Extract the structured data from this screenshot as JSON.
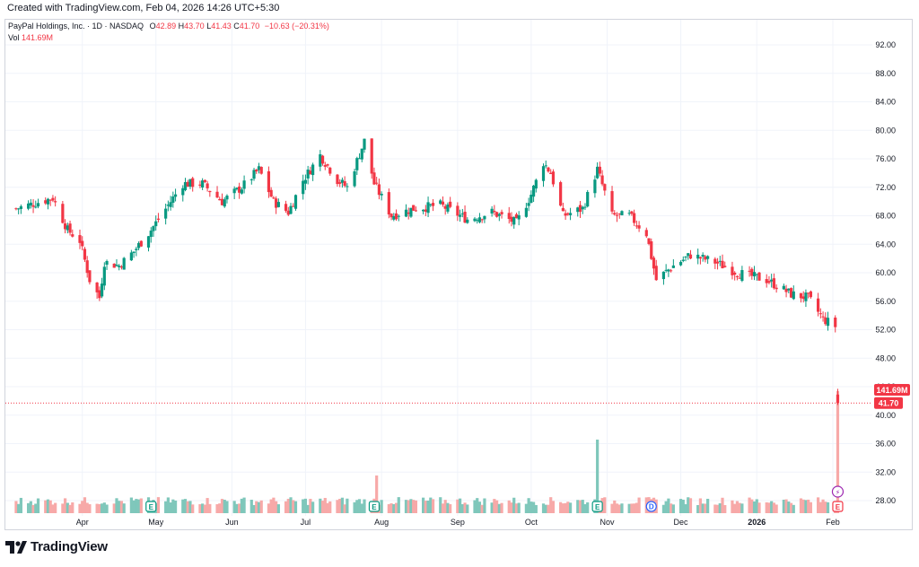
{
  "header": {
    "created_text": "Created with TradingView.com, Feb 04, 2026 14:26 UTC+5:30"
  },
  "legend": {
    "symbol_line": "PayPal Holdings, Inc. · 1D · NASDAQ",
    "o_label": "O",
    "o_value": "42.89",
    "h_label": "H",
    "h_value": "43.70",
    "l_label": "L",
    "l_value": "41.43",
    "c_label": "C",
    "c_value": "41.70",
    "change": "−10.63 (−20.31%)",
    "vol_label": "Vol",
    "vol_value": "141.69M"
  },
  "price_badge": "41.70",
  "volume_badge": "141.69M",
  "brand": {
    "name": "TradingView"
  },
  "colors": {
    "up": "#089981",
    "down": "#f23645",
    "up_vol": "#7fc7bb",
    "down_vol": "#f7a9a8",
    "grid": "#f0f3fa"
  },
  "chart_data": {
    "type": "candlestick",
    "title": "PayPal Holdings, Inc. · 1D · NASDAQ",
    "y_ticks": [
      "92.00",
      "88.00",
      "84.00",
      "80.00",
      "76.00",
      "72.00",
      "68.00",
      "64.00",
      "60.00",
      "56.00",
      "52.00",
      "48.00",
      "44.00",
      "40.00",
      "36.00",
      "32.00",
      "28.00"
    ],
    "x_ticks": [
      "Apr",
      "May",
      "Jun",
      "Jul",
      "Aug",
      "Sep",
      "Oct",
      "Nov",
      "Dec",
      "2026",
      "Feb"
    ],
    "ylim": [
      26.5,
      94.5
    ],
    "grid": true,
    "price_path": [
      [
        "2025-03-05",
        69.0
      ],
      [
        "2025-03-20",
        70.5
      ],
      [
        "2025-03-26",
        66.0
      ],
      [
        "2025-03-31",
        64.5
      ],
      [
        "2025-04-04",
        59.0
      ],
      [
        "2025-04-08",
        56.5
      ],
      [
        "2025-04-10",
        61.5
      ],
      [
        "2025-04-16",
        61.0
      ],
      [
        "2025-04-22",
        63.0
      ],
      [
        "2025-04-29",
        66.0
      ],
      [
        "2025-05-05",
        69.0
      ],
      [
        "2025-05-12",
        72.5
      ],
      [
        "2025-05-20",
        72.5
      ],
      [
        "2025-05-28",
        70.0
      ],
      [
        "2025-06-05",
        72.0
      ],
      [
        "2025-06-12",
        74.5
      ],
      [
        "2025-06-18",
        70.0
      ],
      [
        "2025-06-24",
        68.5
      ],
      [
        "2025-06-30",
        73.0
      ],
      [
        "2025-07-07",
        76.5
      ],
      [
        "2025-07-14",
        73.0
      ],
      [
        "2025-07-18",
        72.0
      ],
      [
        "2025-07-25",
        78.5
      ],
      [
        "2025-07-29",
        72.5
      ],
      [
        "2025-08-05",
        68.0
      ],
      [
        "2025-08-14",
        69.0
      ],
      [
        "2025-08-25",
        69.5
      ],
      [
        "2025-09-05",
        67.5
      ],
      [
        "2025-09-15",
        68.5
      ],
      [
        "2025-09-25",
        67.0
      ],
      [
        "2025-10-01",
        71.0
      ],
      [
        "2025-10-06",
        75.5
      ],
      [
        "2025-10-09",
        74.0
      ],
      [
        "2025-10-14",
        68.0
      ],
      [
        "2025-10-22",
        69.0
      ],
      [
        "2025-10-28",
        74.5
      ],
      [
        "2025-11-03",
        68.0
      ],
      [
        "2025-11-10",
        68.0
      ],
      [
        "2025-11-17",
        65.5
      ],
      [
        "2025-11-21",
        59.0
      ],
      [
        "2025-11-28",
        61.0
      ],
      [
        "2025-12-05",
        62.5
      ],
      [
        "2025-12-15",
        61.5
      ],
      [
        "2025-12-24",
        60.0
      ],
      [
        "2026-01-05",
        59.0
      ],
      [
        "2026-01-15",
        57.0
      ],
      [
        "2026-01-22",
        56.5
      ],
      [
        "2026-01-28",
        53.5
      ],
      [
        "2026-02-02",
        52.5
      ]
    ],
    "last_candle": {
      "date": "2026-02-03",
      "open": 42.89,
      "high": 43.7,
      "low": 41.43,
      "close": 41.7
    },
    "last_volume": "141.69M",
    "volume_spikes": [
      {
        "date": "2025-07-30",
        "volume": "spike"
      },
      {
        "date": "2025-10-28",
        "volume": "spike"
      },
      {
        "date": "2026-02-03",
        "volume": "141.69M"
      }
    ],
    "events": [
      {
        "date": "2025-04-29",
        "type": "earnings",
        "label": "E"
      },
      {
        "date": "2025-07-29",
        "type": "earnings",
        "label": "E"
      },
      {
        "date": "2025-10-28",
        "type": "earnings",
        "label": "E"
      },
      {
        "date": "2025-11-19",
        "type": "dividend",
        "label": "D"
      },
      {
        "date": "2026-02-03",
        "type": "earnings",
        "label": "E"
      },
      {
        "date": "2026-02-03",
        "type": "split",
        "label": "⚡"
      }
    ]
  }
}
